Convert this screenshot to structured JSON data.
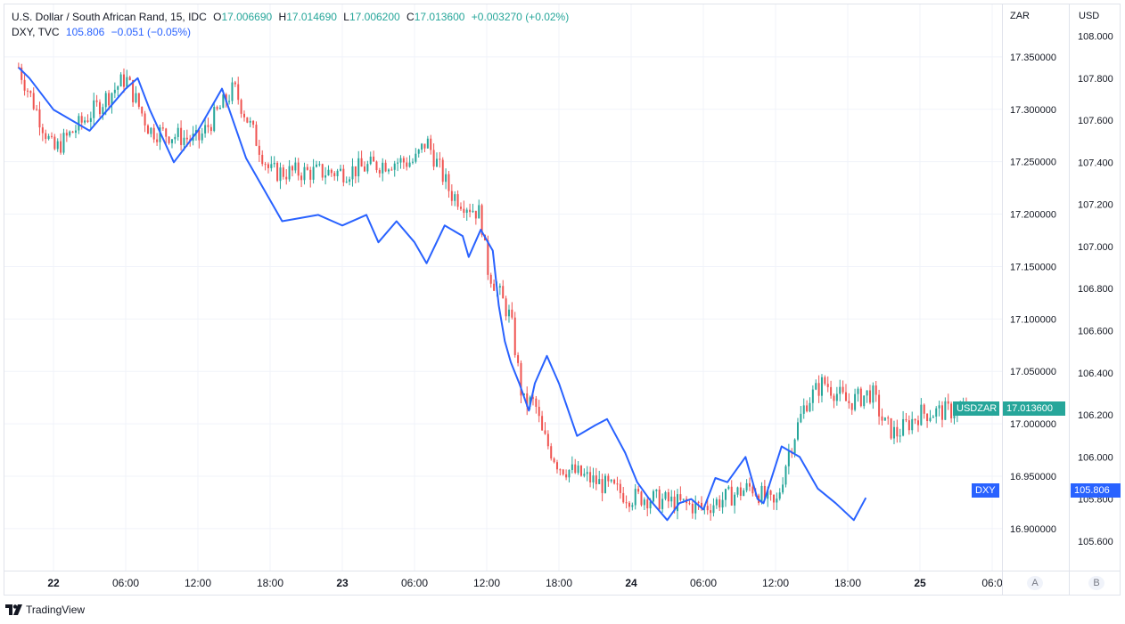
{
  "legend": {
    "main": {
      "title": "U.S. Dollar / South African Rand, 15, IDC",
      "o_label": "O",
      "o_value": "17.006690",
      "h_label": "H",
      "h_value": "17.014690",
      "l_label": "L",
      "l_value": "17.006200",
      "c_label": "C",
      "c_value": "17.013600",
      "change": "+0.003270 (+0.02%)"
    },
    "dxy": {
      "title": "DXY, TVC",
      "value": "105.806",
      "change": "−0.051 (−0.05%)"
    }
  },
  "scales": {
    "left_name": "ZAR",
    "right_name": "USD",
    "zar_ticks": [
      "17.350000",
      "17.300000",
      "17.250000",
      "17.200000",
      "17.150000",
      "17.100000",
      "17.050000",
      "17.000000",
      "16.950000",
      "16.900000"
    ],
    "usd_ticks": [
      "108.000",
      "107.800",
      "107.600",
      "107.400",
      "107.200",
      "107.000",
      "106.800",
      "106.600",
      "106.400",
      "106.200",
      "106.000",
      "105.800",
      "105.600"
    ],
    "usdzar_tag_label": "USDZAR",
    "usdzar_tag_value": "17.013600",
    "dxy_tag_label": "DXY",
    "dxy_tag_value": "105.806",
    "button_a": "A",
    "button_b": "B"
  },
  "time_axis": {
    "labels": [
      "22",
      "06:00",
      "12:00",
      "18:00",
      "23",
      "06:00",
      "12:00",
      "18:00",
      "24",
      "06:00",
      "12:00",
      "18:00",
      "25",
      "06:0"
    ]
  },
  "branding": {
    "text": "TradingView"
  },
  "colors": {
    "up": "#26a69a",
    "down": "#ef5350",
    "dxy_line": "#2962ff",
    "grid": "#f0f3fa",
    "usdzar_tag": "#26a69a",
    "dxy_tag": "#2962ff"
  },
  "chart_data": {
    "type": "line",
    "title": "U.S. Dollar / South African Rand, 15, IDC",
    "x_range": [
      "22 00:00",
      "25 06:00"
    ],
    "series": [
      {
        "name": "USDZAR",
        "style": "candlestick",
        "scale": "ZAR",
        "y_range": [
          16.86,
          17.4
        ],
        "x_hours": [
          -2.9,
          0,
          6,
          8,
          12,
          15,
          18,
          24,
          28,
          30,
          31,
          33,
          35.5,
          36,
          38,
          39,
          40,
          40.6,
          42,
          44,
          48,
          49,
          54,
          58,
          60,
          61,
          62.5,
          64,
          66,
          68,
          69,
          70,
          72,
          76
        ],
        "close": [
          17.34,
          17.26,
          17.33,
          17.28,
          17.27,
          17.32,
          17.24,
          17.24,
          17.25,
          17.25,
          17.27,
          17.22,
          17.2,
          17.15,
          17.1,
          17.02,
          17.02,
          16.99,
          16.96,
          16.95,
          16.93,
          16.93,
          16.92,
          16.94,
          16.92,
          16.97,
          17.02,
          17.04,
          17.02,
          17.03,
          17.0,
          16.99,
          17.01,
          17.0136
        ]
      },
      {
        "name": "DXY",
        "style": "line",
        "scale": "USD",
        "y_range": [
          105.46,
          108.15
        ],
        "x_hours": [
          -2.9,
          -2.0,
          0.0,
          3.0,
          6.0,
          7.0,
          8.0,
          10.0,
          12.0,
          14.0,
          16.0,
          18.0,
          19.0,
          22.0,
          24.0,
          26.0,
          27.0,
          28.5,
          30.0,
          31.0,
          32.5,
          34.0,
          34.5,
          35.5,
          36.5,
          37.0,
          37.5,
          38.0,
          38.7,
          39.5,
          40.0,
          41.0,
          42.0,
          43.5,
          45.0,
          46.0,
          47.5,
          48.5,
          49.5,
          51.0,
          52.0,
          53.0,
          54.0,
          55.0,
          56.0,
          57.5,
          58.5,
          59.0,
          60.5,
          62.0,
          63.5,
          65.0,
          66.5,
          67.5
        ],
        "values": [
          107.85,
          107.8,
          107.65,
          107.55,
          107.75,
          107.8,
          107.65,
          107.4,
          107.55,
          107.75,
          107.42,
          107.22,
          107.12,
          107.15,
          107.1,
          107.15,
          107.02,
          107.12,
          107.02,
          106.92,
          107.1,
          107.05,
          106.95,
          107.08,
          106.98,
          106.72,
          106.55,
          106.45,
          106.35,
          106.22,
          106.35,
          106.48,
          106.35,
          106.1,
          106.15,
          106.18,
          106.02,
          105.88,
          105.8,
          105.7,
          105.78,
          105.8,
          105.75,
          105.9,
          105.88,
          106.0,
          105.8,
          105.78,
          106.05,
          106.0,
          105.85,
          105.78,
          105.7,
          105.806
        ]
      }
    ]
  }
}
